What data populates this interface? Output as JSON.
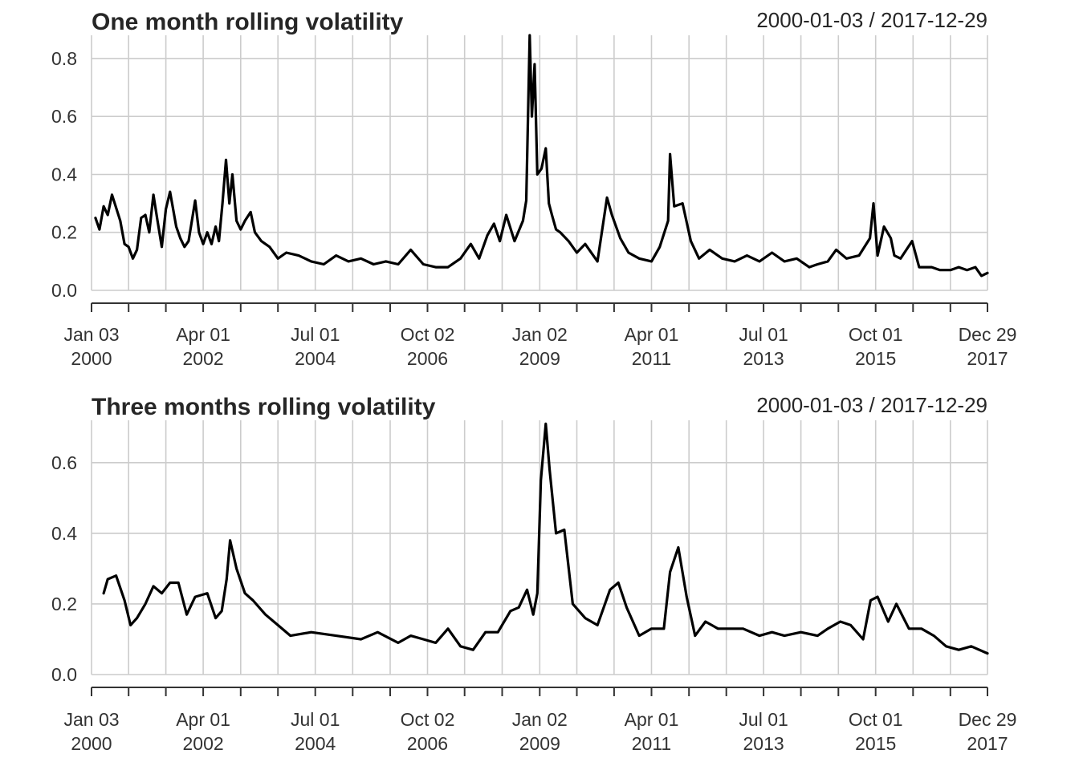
{
  "chart_data": [
    {
      "type": "line",
      "title": "One month rolling volatility",
      "date_range": "2000-01-03 / 2017-12-29",
      "x_range": [
        "2000-01-03",
        "2017-12-29"
      ],
      "ylim": [
        0,
        0.88
      ],
      "y_ticks": [
        {
          "value": 0.0,
          "label": "0.0"
        },
        {
          "value": 0.2,
          "label": "0.2"
        },
        {
          "value": 0.4,
          "label": "0.4"
        },
        {
          "value": 0.6,
          "label": "0.6"
        },
        {
          "value": 0.8,
          "label": "0.8"
        }
      ],
      "x_tick_labels": [
        {
          "date": "2000-01-03",
          "line1": "Jan 03",
          "line2": "2000"
        },
        {
          "date": "2002-04-01",
          "line1": "Apr 01",
          "line2": "2002"
        },
        {
          "date": "2004-07-01",
          "line1": "Jul 01",
          "line2": "2004"
        },
        {
          "date": "2006-10-02",
          "line1": "Oct 02",
          "line2": "2006"
        },
        {
          "date": "2009-01-02",
          "line1": "Jan 02",
          "line2": "2009"
        },
        {
          "date": "2011-04-01",
          "line1": "Apr 01",
          "line2": "2011"
        },
        {
          "date": "2013-07-01",
          "line1": "Jul 01",
          "line2": "2013"
        },
        {
          "date": "2015-10-01",
          "line1": "Oct 01",
          "line2": "2015"
        },
        {
          "date": "2017-12-29",
          "line1": "Dec 29",
          "line2": "2017"
        }
      ],
      "grid": true,
      "series": [
        {
          "x": [
            "2000-02-01",
            "2000-03-01",
            "2000-04-01",
            "2000-05-01",
            "2000-06-01",
            "2000-08-01",
            "2000-09-01",
            "2000-10-01",
            "2000-11-01",
            "2000-12-01",
            "2001-01-01",
            "2001-02-01",
            "2001-03-01",
            "2001-04-01",
            "2001-05-01",
            "2001-06-01",
            "2001-07-01",
            "2001-08-01",
            "2001-09-15",
            "2001-10-15",
            "2001-11-15",
            "2001-12-15",
            "2002-02-01",
            "2002-03-01",
            "2002-04-01",
            "2002-05-01",
            "2002-06-01",
            "2002-07-01",
            "2002-07-25",
            "2002-08-20",
            "2002-09-15",
            "2002-10-10",
            "2002-11-01",
            "2002-12-01",
            "2003-01-01",
            "2003-02-01",
            "2003-03-15",
            "2003-04-15",
            "2003-06-01",
            "2003-08-01",
            "2003-10-01",
            "2003-12-01",
            "2004-03-01",
            "2004-06-01",
            "2004-09-01",
            "2004-12-01",
            "2005-03-01",
            "2005-06-01",
            "2005-09-01",
            "2005-12-01",
            "2006-03-01",
            "2006-06-01",
            "2006-09-01",
            "2006-12-01",
            "2007-03-01",
            "2007-06-01",
            "2007-08-15",
            "2007-10-15",
            "2007-12-15",
            "2008-02-01",
            "2008-03-15",
            "2008-05-01",
            "2008-07-01",
            "2008-09-01",
            "2008-09-25",
            "2008-10-20",
            "2008-11-05",
            "2008-11-25",
            "2008-12-15",
            "2009-01-15",
            "2009-02-15",
            "2009-03-10",
            "2009-04-01",
            "2009-05-01",
            "2009-06-01",
            "2009-08-01",
            "2009-10-01",
            "2009-12-01",
            "2010-03-01",
            "2010-05-10",
            "2010-06-15",
            "2010-08-15",
            "2010-10-15",
            "2011-01-01",
            "2011-04-01",
            "2011-06-01",
            "2011-08-01",
            "2011-08-15",
            "2011-09-15",
            "2011-11-15",
            "2012-01-15",
            "2012-03-15",
            "2012-06-01",
            "2012-09-01",
            "2012-12-01",
            "2013-03-01",
            "2013-06-01",
            "2013-09-01",
            "2013-12-01",
            "2014-03-01",
            "2014-06-01",
            "2014-08-01",
            "2014-10-15",
            "2014-12-15",
            "2015-03-01",
            "2015-06-01",
            "2015-08-20",
            "2015-09-15",
            "2015-10-15",
            "2015-12-01",
            "2016-01-20",
            "2016-02-15",
            "2016-04-01",
            "2016-06-24",
            "2016-08-15",
            "2016-11-15",
            "2017-01-15",
            "2017-04-01",
            "2017-06-01",
            "2017-08-01",
            "2017-10-01",
            "2017-11-15",
            "2017-12-29"
          ],
          "y": [
            0.25,
            0.21,
            0.29,
            0.26,
            0.33,
            0.24,
            0.16,
            0.15,
            0.11,
            0.14,
            0.25,
            0.26,
            0.2,
            0.33,
            0.24,
            0.15,
            0.28,
            0.34,
            0.22,
            0.18,
            0.15,
            0.17,
            0.31,
            0.2,
            0.16,
            0.2,
            0.16,
            0.22,
            0.17,
            0.3,
            0.45,
            0.3,
            0.4,
            0.24,
            0.21,
            0.24,
            0.27,
            0.2,
            0.17,
            0.15,
            0.11,
            0.13,
            0.12,
            0.1,
            0.09,
            0.12,
            0.1,
            0.11,
            0.09,
            0.1,
            0.09,
            0.14,
            0.09,
            0.08,
            0.08,
            0.11,
            0.16,
            0.11,
            0.19,
            0.23,
            0.17,
            0.26,
            0.17,
            0.24,
            0.31,
            0.89,
            0.6,
            0.78,
            0.4,
            0.42,
            0.49,
            0.3,
            0.26,
            0.21,
            0.2,
            0.17,
            0.13,
            0.16,
            0.1,
            0.32,
            0.26,
            0.18,
            0.13,
            0.11,
            0.1,
            0.15,
            0.24,
            0.47,
            0.29,
            0.3,
            0.17,
            0.11,
            0.14,
            0.11,
            0.1,
            0.12,
            0.1,
            0.13,
            0.1,
            0.11,
            0.08,
            0.09,
            0.1,
            0.14,
            0.11,
            0.12,
            0.18,
            0.3,
            0.12,
            0.22,
            0.18,
            0.12,
            0.11,
            0.17,
            0.08,
            0.08,
            0.07,
            0.07,
            0.08,
            0.07,
            0.08,
            0.05,
            0.06
          ]
        }
      ]
    },
    {
      "type": "line",
      "title": "Three months rolling volatility",
      "date_range": "2000-01-03 / 2017-12-29",
      "x_range": [
        "2000-01-03",
        "2017-12-29"
      ],
      "ylim": [
        0,
        0.72
      ],
      "y_ticks": [
        {
          "value": 0.0,
          "label": "0.0"
        },
        {
          "value": 0.2,
          "label": "0.2"
        },
        {
          "value": 0.4,
          "label": "0.4"
        },
        {
          "value": 0.6,
          "label": "0.6"
        }
      ],
      "x_tick_labels": [
        {
          "date": "2000-01-03",
          "line1": "Jan 03",
          "line2": "2000"
        },
        {
          "date": "2002-04-01",
          "line1": "Apr 01",
          "line2": "2002"
        },
        {
          "date": "2004-07-01",
          "line1": "Jul 01",
          "line2": "2004"
        },
        {
          "date": "2006-10-02",
          "line1": "Oct 02",
          "line2": "2006"
        },
        {
          "date": "2009-01-02",
          "line1": "Jan 02",
          "line2": "2009"
        },
        {
          "date": "2011-04-01",
          "line1": "Apr 01",
          "line2": "2011"
        },
        {
          "date": "2013-07-01",
          "line1": "Jul 01",
          "line2": "2013"
        },
        {
          "date": "2015-10-01",
          "line1": "Oct 01",
          "line2": "2015"
        },
        {
          "date": "2017-12-29",
          "line1": "Dec 29",
          "line2": "2017"
        }
      ],
      "grid": true,
      "series": [
        {
          "x": [
            "2000-04-01",
            "2000-05-01",
            "2000-07-01",
            "2000-09-01",
            "2000-10-15",
            "2000-12-01",
            "2001-02-01",
            "2001-04-01",
            "2001-06-01",
            "2001-08-01",
            "2001-10-01",
            "2001-12-01",
            "2002-02-01",
            "2002-05-01",
            "2002-07-01",
            "2002-08-15",
            "2002-09-20",
            "2002-10-15",
            "2002-12-01",
            "2003-02-01",
            "2003-04-01",
            "2003-07-01",
            "2003-10-01",
            "2004-01-01",
            "2004-06-01",
            "2004-12-01",
            "2005-06-01",
            "2005-10-01",
            "2006-03-01",
            "2006-06-01",
            "2006-09-01",
            "2006-12-01",
            "2007-03-01",
            "2007-06-01",
            "2007-09-01",
            "2007-12-01",
            "2008-03-01",
            "2008-06-01",
            "2008-08-01",
            "2008-10-01",
            "2008-11-15",
            "2008-12-15",
            "2009-01-10",
            "2009-02-15",
            "2009-03-15",
            "2009-05-01",
            "2009-07-01",
            "2009-09-01",
            "2009-12-01",
            "2010-03-01",
            "2010-06-01",
            "2010-08-01",
            "2010-10-01",
            "2011-01-01",
            "2011-04-01",
            "2011-07-01",
            "2011-08-15",
            "2011-10-15",
            "2011-12-15",
            "2012-02-15",
            "2012-05-01",
            "2012-08-01",
            "2012-11-01",
            "2013-02-01",
            "2013-06-01",
            "2013-09-01",
            "2013-12-01",
            "2014-04-01",
            "2014-08-01",
            "2014-10-15",
            "2015-01-15",
            "2015-04-01",
            "2015-07-01",
            "2015-08-25",
            "2015-10-15",
            "2016-01-01",
            "2016-03-01",
            "2016-06-01",
            "2016-09-01",
            "2016-12-01",
            "2017-03-01",
            "2017-06-01",
            "2017-09-01",
            "2017-12-29"
          ],
          "y": [
            0.23,
            0.27,
            0.28,
            0.21,
            0.14,
            0.16,
            0.2,
            0.25,
            0.23,
            0.26,
            0.26,
            0.17,
            0.22,
            0.23,
            0.16,
            0.18,
            0.27,
            0.38,
            0.3,
            0.23,
            0.21,
            0.17,
            0.14,
            0.11,
            0.12,
            0.11,
            0.1,
            0.12,
            0.09,
            0.11,
            0.1,
            0.09,
            0.13,
            0.08,
            0.07,
            0.12,
            0.12,
            0.18,
            0.19,
            0.24,
            0.17,
            0.23,
            0.55,
            0.71,
            0.58,
            0.4,
            0.41,
            0.2,
            0.16,
            0.14,
            0.24,
            0.26,
            0.19,
            0.11,
            0.13,
            0.13,
            0.29,
            0.36,
            0.22,
            0.11,
            0.15,
            0.13,
            0.13,
            0.13,
            0.11,
            0.12,
            0.11,
            0.12,
            0.11,
            0.13,
            0.15,
            0.14,
            0.1,
            0.21,
            0.22,
            0.15,
            0.2,
            0.13,
            0.13,
            0.11,
            0.08,
            0.07,
            0.08,
            0.06
          ]
        }
      ]
    }
  ]
}
